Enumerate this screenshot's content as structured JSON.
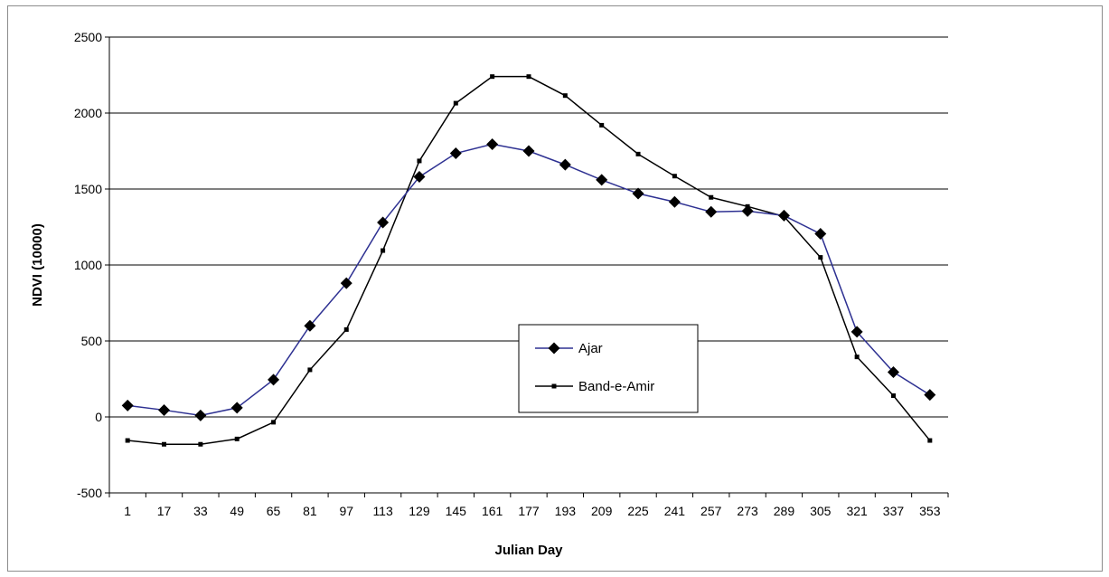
{
  "chart_data": {
    "type": "line",
    "title": "",
    "xlabel": "Julian Day",
    "ylabel": "NDVI (10000)",
    "categories": [
      "1",
      "17",
      "33",
      "49",
      "65",
      "81",
      "97",
      "113",
      "129",
      "145",
      "161",
      "177",
      "193",
      "209",
      "225",
      "241",
      "257",
      "273",
      "289",
      "305",
      "321",
      "337",
      "353"
    ],
    "ylim": [
      -500,
      2500
    ],
    "yticks": [
      -500,
      0,
      500,
      1000,
      1500,
      2000,
      2500
    ],
    "grid": true,
    "legend_position": "center",
    "series": [
      {
        "name": "Ajar",
        "color": "#2e3192",
        "marker": "diamond",
        "marker_color": "#000000",
        "values": [
          75,
          45,
          10,
          60,
          245,
          600,
          880,
          1280,
          1580,
          1735,
          1795,
          1750,
          1660,
          1560,
          1470,
          1415,
          1350,
          1355,
          1325,
          1205,
          560,
          295,
          145
        ]
      },
      {
        "name": "Band-e-Amir",
        "color": "#000000",
        "marker": "square",
        "marker_color": "#000000",
        "values": [
          -155,
          -180,
          -180,
          -145,
          -35,
          310,
          575,
          1095,
          1685,
          2065,
          2240,
          2240,
          2115,
          1920,
          1730,
          1585,
          1445,
          1385,
          1320,
          1050,
          395,
          140,
          -155
        ]
      }
    ]
  }
}
